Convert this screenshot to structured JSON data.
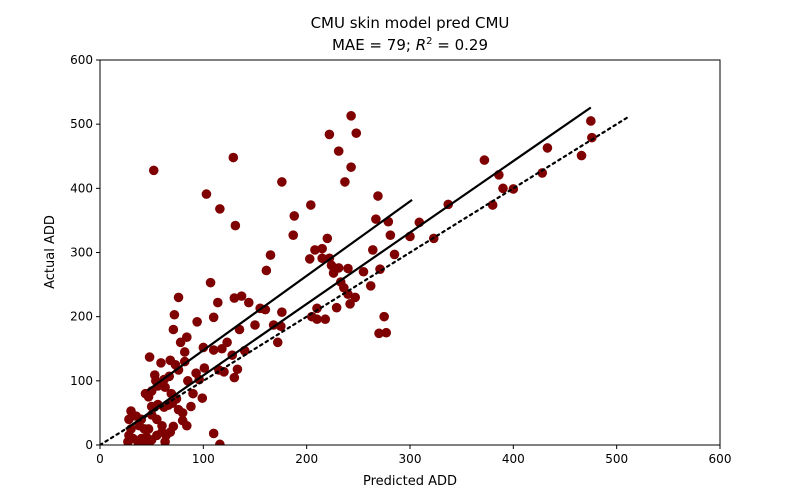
{
  "chart_data": {
    "type": "scatter",
    "title": "CMU skin model pred CMU",
    "subtitle_prefix": "MAE = 79; ",
    "subtitle_r": "R",
    "subtitle_sup": "2",
    "subtitle_suffix": " = 0.29",
    "xlabel": "Predicted ADD",
    "ylabel": "Actual ADD",
    "xlim": [
      0,
      600
    ],
    "ylim": [
      0,
      600
    ],
    "xticks": [
      "0",
      "100",
      "200",
      "300",
      "400",
      "500",
      "600"
    ],
    "yticks": [
      "0",
      "100",
      "200",
      "300",
      "400",
      "500",
      "600"
    ],
    "grid": false,
    "point_color": "#7f0000",
    "line_color": "#000000",
    "points": [
      [
        52,
        428
      ],
      [
        129,
        448
      ],
      [
        243,
        513
      ],
      [
        222,
        484
      ],
      [
        248,
        486
      ],
      [
        231,
        458
      ],
      [
        243,
        433
      ],
      [
        237,
        410
      ],
      [
        176,
        410
      ],
      [
        103,
        391
      ],
      [
        116,
        368
      ],
      [
        131,
        342
      ],
      [
        204,
        374
      ],
      [
        188,
        357
      ],
      [
        187,
        327
      ],
      [
        208,
        304
      ],
      [
        215,
        306
      ],
      [
        220,
        322
      ],
      [
        203,
        290
      ],
      [
        215,
        291
      ],
      [
        222,
        291
      ],
      [
        226,
        268
      ],
      [
        231,
        276
      ],
      [
        224,
        280
      ],
      [
        165,
        296
      ],
      [
        161,
        272
      ],
      [
        107,
        253
      ],
      [
        76,
        230
      ],
      [
        130,
        229
      ],
      [
        137,
        232
      ],
      [
        144,
        222
      ],
      [
        114,
        222
      ],
      [
        155,
        213
      ],
      [
        176,
        207
      ],
      [
        168,
        187
      ],
      [
        150,
        187
      ],
      [
        72,
        203
      ],
      [
        94,
        192
      ],
      [
        110,
        199
      ],
      [
        71,
        180
      ],
      [
        84,
        168
      ],
      [
        78,
        160
      ],
      [
        82,
        145
      ],
      [
        100,
        152
      ],
      [
        110,
        148
      ],
      [
        118,
        150
      ],
      [
        135,
        180
      ],
      [
        123,
        160
      ],
      [
        128,
        140
      ],
      [
        140,
        147
      ],
      [
        133,
        118
      ],
      [
        130,
        105
      ],
      [
        120,
        114
      ],
      [
        115,
        117
      ],
      [
        93,
        112
      ],
      [
        96,
        102
      ],
      [
        101,
        120
      ],
      [
        99,
        73
      ],
      [
        90,
        80
      ],
      [
        85,
        100
      ],
      [
        82,
        130
      ],
      [
        76,
        117
      ],
      [
        73,
        125
      ],
      [
        68,
        132
      ],
      [
        67,
        107
      ],
      [
        62,
        102
      ],
      [
        63,
        90
      ],
      [
        59,
        128
      ],
      [
        60,
        95
      ],
      [
        56,
        92
      ],
      [
        54,
        100
      ],
      [
        48,
        137
      ],
      [
        53,
        109
      ],
      [
        50,
        84
      ],
      [
        44,
        80
      ],
      [
        47,
        75
      ],
      [
        50,
        60
      ],
      [
        56,
        63
      ],
      [
        62,
        59
      ],
      [
        66,
        62
      ],
      [
        70,
        65
      ],
      [
        69,
        80
      ],
      [
        74,
        72
      ],
      [
        76,
        55
      ],
      [
        80,
        50
      ],
      [
        88,
        60
      ],
      [
        84,
        30
      ],
      [
        80,
        38
      ],
      [
        71,
        29
      ],
      [
        68,
        20
      ],
      [
        64,
        15
      ],
      [
        60,
        30
      ],
      [
        55,
        40
      ],
      [
        50,
        47
      ],
      [
        47,
        25
      ],
      [
        43,
        25
      ],
      [
        40,
        40
      ],
      [
        38,
        30
      ],
      [
        35,
        45
      ],
      [
        30,
        53
      ],
      [
        30,
        25
      ],
      [
        28,
        15
      ],
      [
        27,
        5
      ],
      [
        32,
        10
      ],
      [
        40,
        10
      ],
      [
        45,
        12
      ],
      [
        50,
        8
      ],
      [
        55,
        15
      ],
      [
        60,
        20
      ],
      [
        63,
        5
      ],
      [
        110,
        18
      ],
      [
        116,
        1
      ],
      [
        45,
        3
      ],
      [
        37,
        0
      ],
      [
        28,
        40
      ],
      [
        160,
        211
      ],
      [
        172,
        160
      ],
      [
        175,
        185
      ],
      [
        240,
        235
      ],
      [
        247,
        230
      ],
      [
        242,
        220
      ],
      [
        236,
        245
      ],
      [
        229,
        214
      ],
      [
        210,
        213
      ],
      [
        218,
        196
      ],
      [
        210,
        196
      ],
      [
        205,
        200
      ],
      [
        233,
        254
      ],
      [
        240,
        275
      ],
      [
        255,
        270
      ],
      [
        262,
        248
      ],
      [
        271,
        274
      ],
      [
        264,
        304
      ],
      [
        267,
        352
      ],
      [
        269,
        388
      ],
      [
        279,
        348
      ],
      [
        281,
        327
      ],
      [
        285,
        297
      ],
      [
        270,
        174
      ],
      [
        277,
        175
      ],
      [
        275,
        200
      ],
      [
        300,
        325
      ],
      [
        309,
        347
      ],
      [
        323,
        322
      ],
      [
        337,
        375
      ],
      [
        372,
        444
      ],
      [
        380,
        374
      ],
      [
        386,
        421
      ],
      [
        390,
        400
      ],
      [
        400,
        399
      ],
      [
        428,
        424
      ],
      [
        433,
        463
      ],
      [
        466,
        451
      ],
      [
        475,
        505
      ],
      [
        476,
        479
      ]
    ],
    "fit_lines": [
      {
        "x": [
          25,
          475
        ],
        "y": [
          25,
          526
        ],
        "style": "solid"
      },
      {
        "x": [
          46,
          302
        ],
        "y": [
          85,
          382
        ],
        "style": "solid"
      },
      {
        "x": [
          0,
          512
        ],
        "y": [
          0,
          512
        ],
        "style": "dotted"
      }
    ]
  }
}
